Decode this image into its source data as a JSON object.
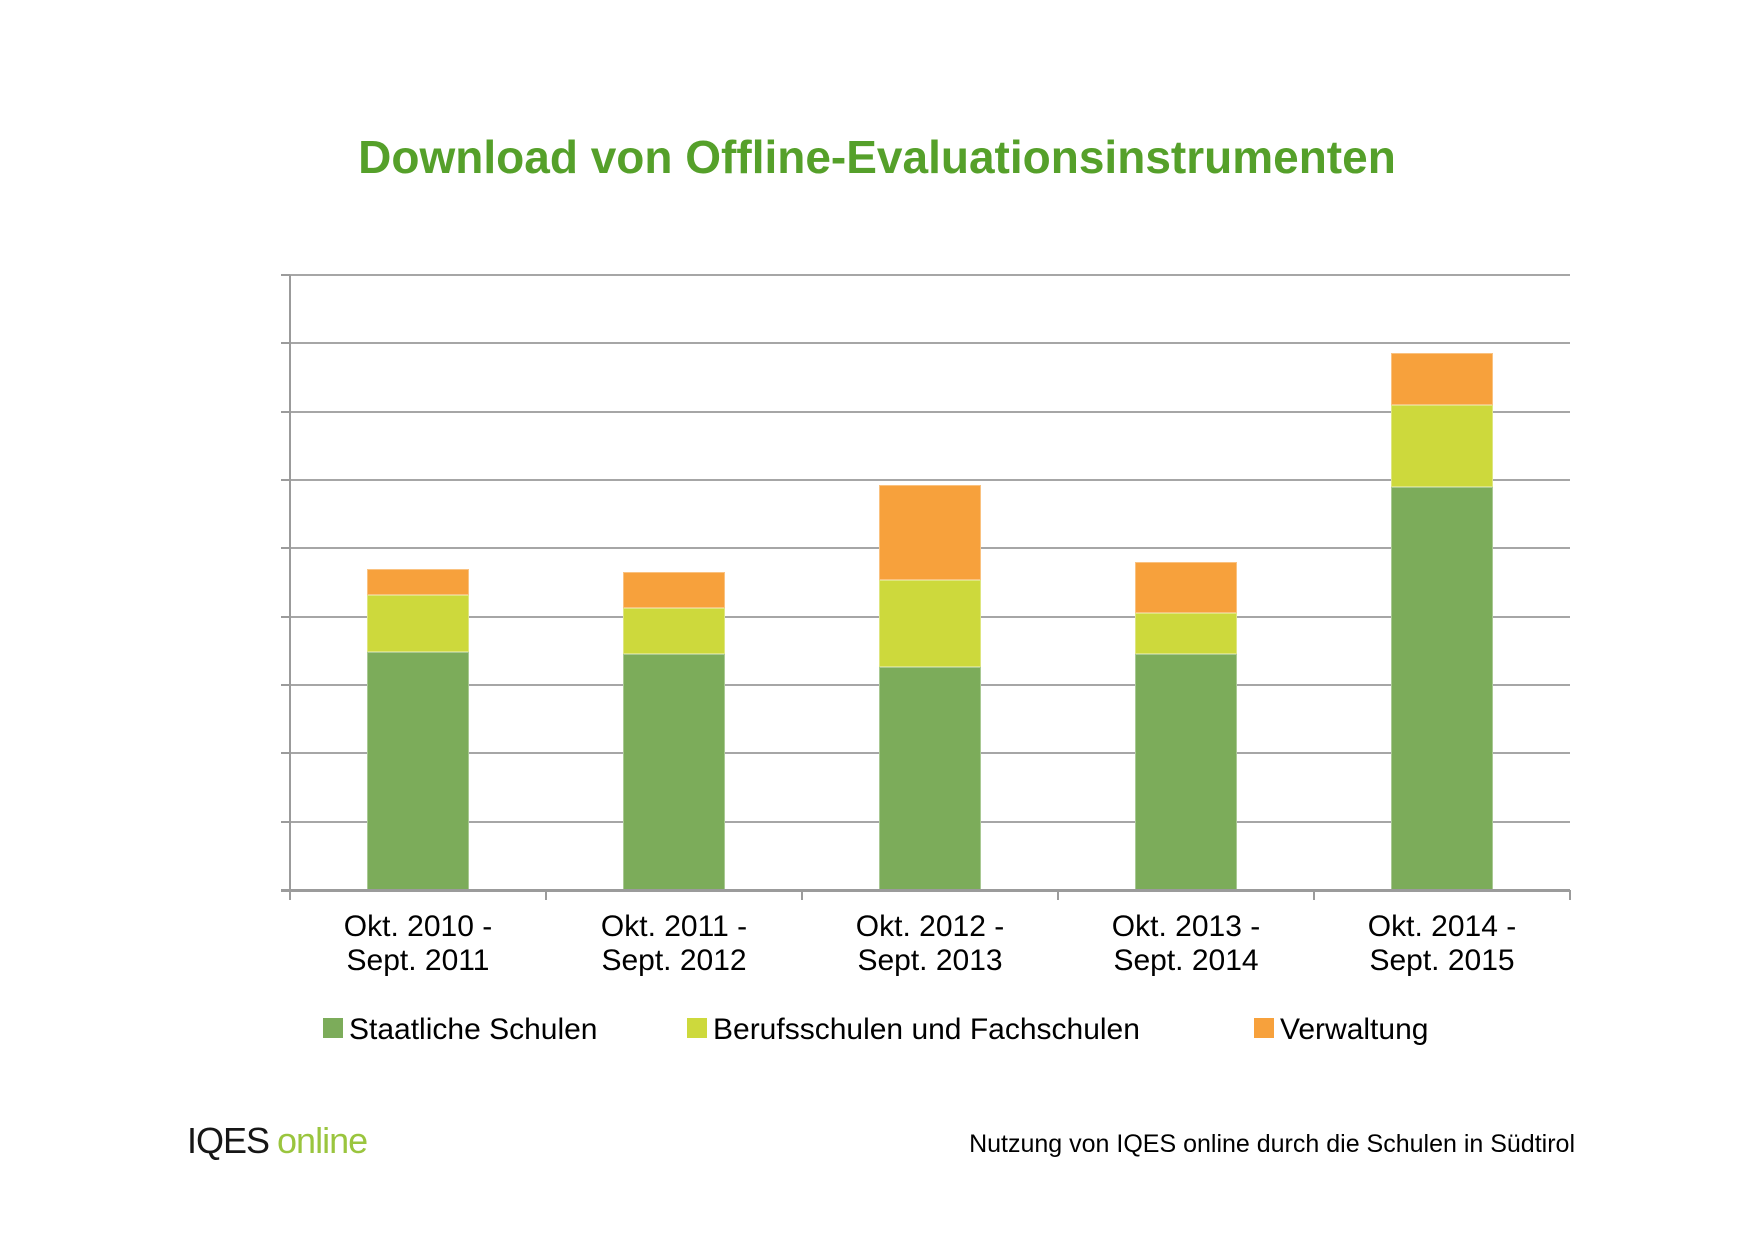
{
  "title": "Download von Offline-Evaluationsinstrumenten",
  "colors": {
    "title_green": "#55A02A",
    "grid_gray": "#A6A6A6",
    "axis_gray": "#9B9B9B",
    "series_green": "#7CAC5A",
    "series_yellowgreen": "#CDD93C",
    "series_orange": "#F7A13C",
    "logo_green": "#9AC53E"
  },
  "chart_data": {
    "type": "bar",
    "stacked": true,
    "grid": true,
    "legend_position": "bottom",
    "categories": [
      [
        "Okt. 2010 -",
        "Sept. 2011"
      ],
      [
        "Okt. 2011 -",
        "Sept. 2012"
      ],
      [
        "Okt. 2012 -",
        "Sept. 2013"
      ],
      [
        "Okt. 2013 -",
        "Sept. 2014"
      ],
      [
        "Okt. 2014 -",
        "Sept. 2015"
      ]
    ],
    "series": [
      {
        "name": "Staatliche Schulen",
        "color": "#7CAC5A",
        "values": [
          1740,
          1730,
          1630,
          1730,
          2950
        ]
      },
      {
        "name": "Berufsschulen und Fachschulen",
        "color": "#CDD93C",
        "values": [
          420,
          330,
          640,
          300,
          600
        ]
      },
      {
        "name": "Verwaltung",
        "color": "#F7A13C",
        "values": [
          190,
          270,
          690,
          370,
          380
        ]
      }
    ],
    "stack_totals": [
      2350,
      2330,
      2960,
      2400,
      3930
    ],
    "ylim": [
      0,
      4500
    ],
    "ytick_step": 500,
    "ytick_labels": [
      "0",
      "500",
      "1'000",
      "1'500",
      "2'000",
      "2'500",
      "3'000",
      "3'500",
      "4'000",
      "4'500"
    ],
    "xlabel": "",
    "ylabel": ""
  },
  "footer": {
    "logo_iqes": "IQES",
    "logo_online": "online",
    "note": "Nutzung von IQES online durch die Schulen in Südtirol"
  }
}
